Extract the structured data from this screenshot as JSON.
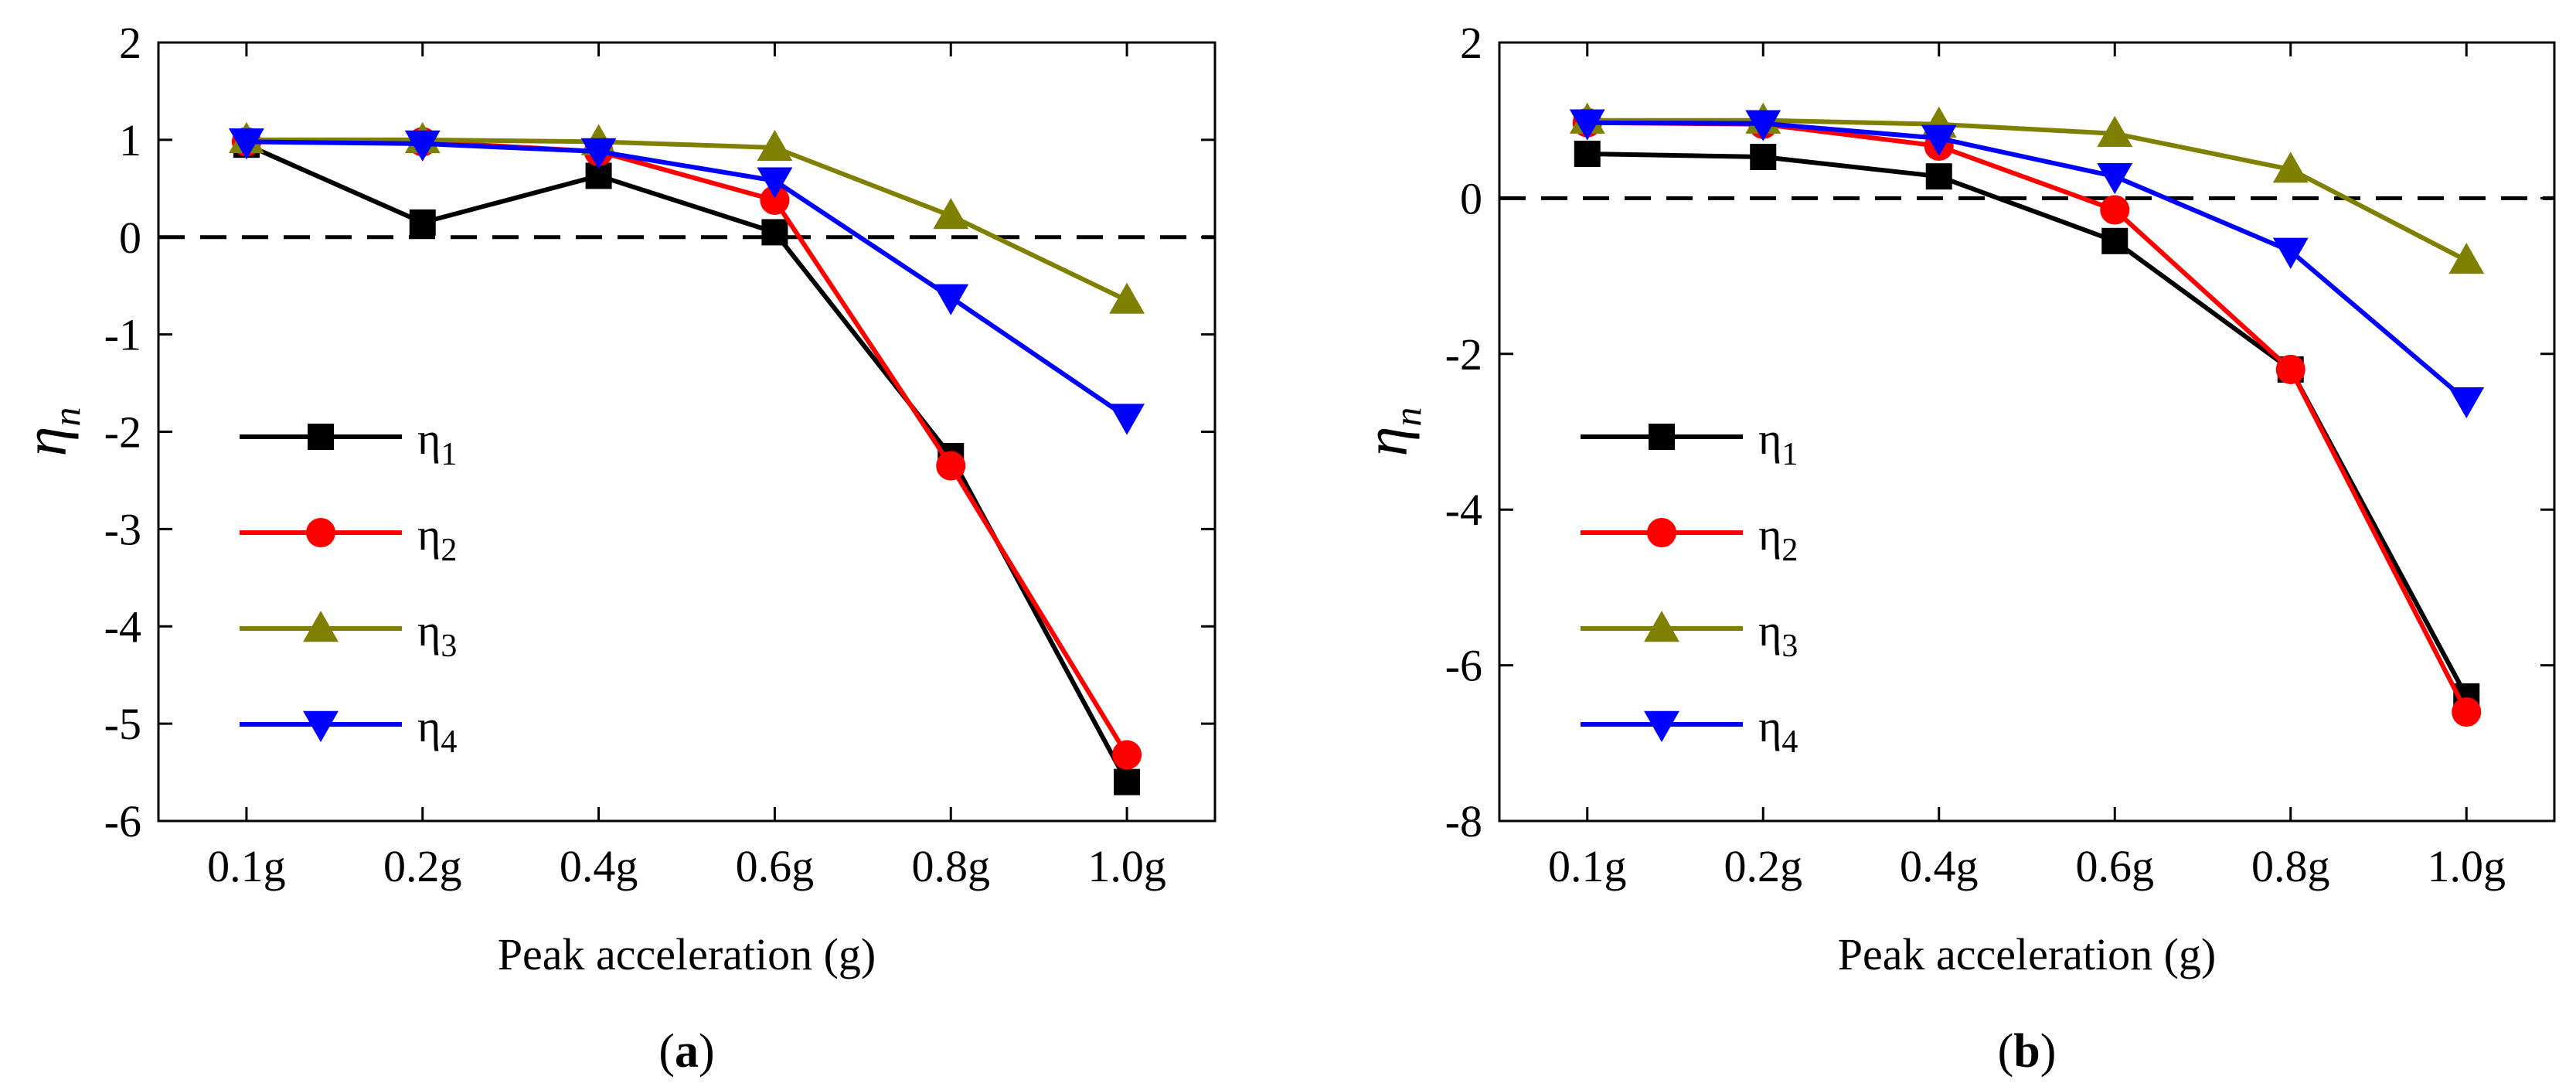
{
  "chart_data": [
    {
      "type": "line",
      "panel_label": "a",
      "xlabel": "Peak acceleration (g)",
      "ylabel": "η",
      "ylabel_sub": "n",
      "categories": [
        "0.1g",
        "0.2g",
        "0.4g",
        "0.6g",
        "0.8g",
        "1.0g"
      ],
      "ylim": [
        -6,
        2
      ],
      "yticks": [
        2,
        1,
        0,
        -1,
        -2,
        -3,
        -4,
        -5,
        -6
      ],
      "reference_line": 0,
      "legend_position": "left",
      "series": [
        {
          "name": "η",
          "sub": "1",
          "color": "#000000",
          "marker": "square",
          "values": [
            0.95,
            0.15,
            0.63,
            0.05,
            -2.25,
            -5.6
          ]
        },
        {
          "name": "η",
          "sub": "2",
          "color": "#ff0000",
          "marker": "circle",
          "values": [
            0.98,
            0.98,
            0.88,
            0.38,
            -2.35,
            -5.32
          ]
        },
        {
          "name": "η",
          "sub": "3",
          "color": "#808000",
          "marker": "triangle-up",
          "values": [
            1.0,
            1.0,
            0.98,
            0.92,
            0.22,
            -0.65
          ]
        },
        {
          "name": "η",
          "sub": "4",
          "color": "#0000ff",
          "marker": "triangle-down",
          "values": [
            0.98,
            0.96,
            0.88,
            0.58,
            -0.62,
            -1.85
          ]
        }
      ]
    },
    {
      "type": "line",
      "panel_label": "b",
      "xlabel": "Peak acceleration (g)",
      "ylabel": "η",
      "ylabel_sub": "n",
      "categories": [
        "0.1g",
        "0.2g",
        "0.4g",
        "0.6g",
        "0.8g",
        "1.0g"
      ],
      "ylim": [
        -8,
        2
      ],
      "yticks": [
        2,
        0,
        -2,
        -4,
        -6,
        -8
      ],
      "reference_line": 0,
      "legend_position": "left",
      "series": [
        {
          "name": "η",
          "sub": "1",
          "color": "#000000",
          "marker": "square",
          "values": [
            0.57,
            0.53,
            0.28,
            -0.55,
            -2.2,
            -6.4
          ]
        },
        {
          "name": "η",
          "sub": "2",
          "color": "#ff0000",
          "marker": "circle",
          "values": [
            0.97,
            0.95,
            0.67,
            -0.15,
            -2.2,
            -6.6
          ]
        },
        {
          "name": "η",
          "sub": "3",
          "color": "#808000",
          "marker": "triangle-up",
          "values": [
            1.0,
            1.0,
            0.95,
            0.83,
            0.37,
            -0.8
          ]
        },
        {
          "name": "η",
          "sub": "4",
          "color": "#0000ff",
          "marker": "triangle-down",
          "values": [
            0.97,
            0.96,
            0.77,
            0.28,
            -0.68,
            -2.6
          ]
        }
      ]
    }
  ]
}
